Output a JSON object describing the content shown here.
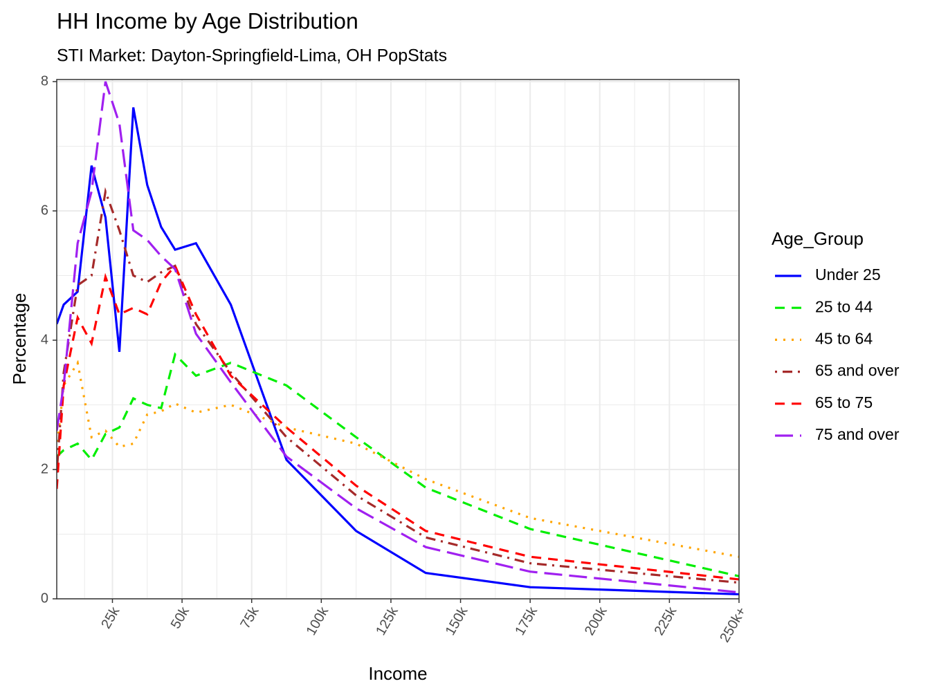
{
  "chart_data": {
    "type": "line",
    "title": "HH Income by Age Distribution",
    "subtitle": "STI Market: Dayton-Springfield-Lima, OH PopStats",
    "x_label": "Income",
    "y_label": "Percentage",
    "legend_title": "Age_Group",
    "legend_position": "right",
    "grid": true,
    "x": [
      5000,
      7500,
      12500,
      17500,
      22500,
      27500,
      32500,
      37500,
      42500,
      47500,
      55000,
      67500,
      87500,
      112500,
      137500,
      175000,
      250000
    ],
    "xlim": [
      5000,
      250000
    ],
    "xticks": [
      {
        "value": 25000,
        "label": "25k"
      },
      {
        "value": 50000,
        "label": "50k"
      },
      {
        "value": 75000,
        "label": "75k"
      },
      {
        "value": 100000,
        "label": "100k"
      },
      {
        "value": 125000,
        "label": "125k"
      },
      {
        "value": 150000,
        "label": "150k"
      },
      {
        "value": 175000,
        "label": "175k"
      },
      {
        "value": 200000,
        "label": "200k"
      },
      {
        "value": 225000,
        "label": "225k"
      },
      {
        "value": 250000,
        "label": "250k+"
      }
    ],
    "ylim": [
      0,
      8
    ],
    "yticks": [
      0,
      2,
      4,
      6,
      8
    ],
    "series": [
      {
        "name": "Under 25",
        "color": "#0000ff",
        "linetype": "solid",
        "values": [
          4.25,
          4.55,
          4.75,
          6.7,
          5.9,
          3.82,
          7.6,
          6.4,
          5.75,
          5.4,
          5.5,
          4.55,
          2.15,
          1.05,
          0.4,
          0.18,
          0.07
        ]
      },
      {
        "name": "25 to 44",
        "color": "#00ee00",
        "linetype": "dashed",
        "values": [
          2.2,
          2.3,
          2.4,
          2.15,
          2.55,
          2.65,
          3.1,
          3.0,
          2.95,
          3.78,
          3.45,
          3.65,
          3.3,
          2.5,
          1.72,
          1.08,
          0.35
        ]
      },
      {
        "name": "45 to 64",
        "color": "#ffa500",
        "linetype": "dotted",
        "values": [
          2.3,
          3.3,
          3.65,
          2.5,
          2.6,
          2.35,
          2.4,
          2.85,
          2.9,
          3.02,
          2.88,
          3.0,
          2.65,
          2.4,
          1.85,
          1.25,
          0.65
        ]
      },
      {
        "name": "65 and over",
        "color": "#a52a2a",
        "linetype": "dotdash",
        "values": [
          1.95,
          3.5,
          4.85,
          5.0,
          6.3,
          5.7,
          5.0,
          4.9,
          5.05,
          5.15,
          4.25,
          3.5,
          2.5,
          1.6,
          0.95,
          0.55,
          0.25
        ]
      },
      {
        "name": "65 to 75",
        "color": "#ff0000",
        "linetype": "dashed",
        "values": [
          1.7,
          3.3,
          4.35,
          3.95,
          4.98,
          4.4,
          4.5,
          4.4,
          4.9,
          5.15,
          4.4,
          3.45,
          2.65,
          1.75,
          1.05,
          0.65,
          0.3
        ]
      },
      {
        "name": "75 and over",
        "color": "#a020f0",
        "linetype": "longdash",
        "values": [
          2.6,
          3.3,
          5.5,
          6.3,
          8.0,
          7.35,
          5.7,
          5.55,
          5.3,
          5.1,
          4.1,
          3.35,
          2.2,
          1.4,
          0.8,
          0.42,
          0.1
        ]
      }
    ]
  }
}
